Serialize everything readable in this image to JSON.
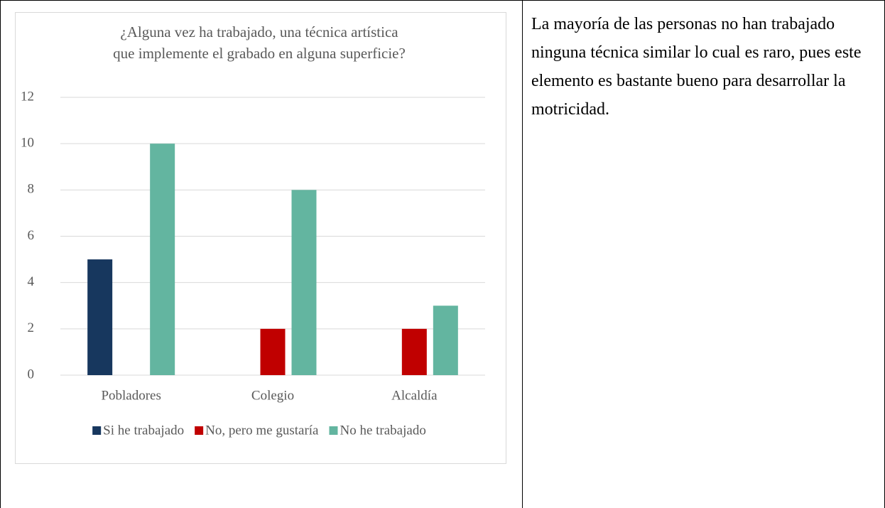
{
  "chart_data": {
    "type": "bar",
    "title": [
      "¿Alguna vez ha trabajado, una técnica artística",
      "que implemente el grabado en alguna superficie?"
    ],
    "categories": [
      "Pobladores",
      "Colegio",
      "Alcaldía"
    ],
    "series": [
      {
        "name": "Si he trabajado",
        "color": "#17375e",
        "values": [
          5,
          0,
          0
        ]
      },
      {
        "name": "No, pero me gustaría",
        "color": "#c00000",
        "values": [
          0,
          2,
          2
        ]
      },
      {
        "name": "No he trabajado",
        "color": "#63b5a0",
        "values": [
          10,
          8,
          3
        ]
      }
    ],
    "ylim": [
      0,
      12
    ],
    "yticks": [
      0,
      2,
      4,
      6,
      8,
      10,
      12
    ],
    "grid": true,
    "legend": "bottom"
  },
  "text": "La mayoría de las personas no han trabajado ninguna técnica similar lo cual es raro, pues este elemento es bastante bueno para desarrollar la motricidad."
}
